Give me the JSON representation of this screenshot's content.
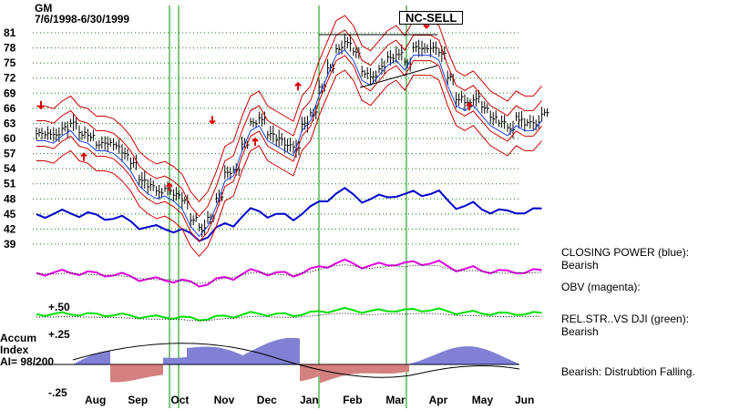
{
  "header": {
    "symbol": "GM",
    "date_range": "7/6/1998-6/30/1999"
  },
  "signal_label": "NC-SELL",
  "accum_label": {
    "line1": "Accum",
    "line2": "Index",
    "line3": "AI= 98/200"
  },
  "indicator_labels": {
    "plus50": "+.50",
    "plus25": "+.25",
    "minus25": "-.25"
  },
  "sidebar": [
    {
      "title": "CLOSING POWER (blue):",
      "value": "Bearish"
    },
    {
      "title": "OBV (magenta):",
      "value": ""
    },
    {
      "title": "REL.STR..VS DJI (green):",
      "value": "Bearish"
    },
    {
      "title": "Bearish: Distrubtion Falling.",
      "value": ""
    }
  ],
  "colors": {
    "price": "#000000",
    "closing_power": "#0000cc",
    "obv": "#e000e0",
    "rel_strength": "#00e000",
    "band": "#cc0000",
    "ma": "#1a3ee0",
    "grid": "#008000",
    "vline": "#009000",
    "arrow": "#dd0000",
    "accum_pos": "#0000aa",
    "accum_neg": "#aa0000"
  },
  "chart_data": {
    "type": "line",
    "title": "GM",
    "subtitle": "7/6/1998-6/30/1999",
    "x_months": [
      "Aug",
      "Sep",
      "Oct",
      "Nov",
      "Dec",
      "Jan",
      "Feb",
      "Mar",
      "Apr",
      "May",
      "Jun"
    ],
    "y_ticks": [
      39,
      42,
      45,
      48,
      51,
      54,
      57,
      60,
      63,
      66,
      69,
      72,
      75,
      78,
      81
    ],
    "ylim": [
      39,
      81
    ],
    "price_series": {
      "x_month": [
        0,
        0.2,
        0.4,
        0.6,
        0.8,
        1.0,
        1.2,
        1.4,
        1.6,
        1.8,
        2.0,
        2.2,
        2.4,
        2.6,
        2.8,
        3.0,
        3.2,
        3.4,
        3.6,
        3.8,
        4.0,
        4.2,
        4.4,
        4.6,
        4.8,
        5.0,
        5.2,
        5.4,
        5.6,
        5.8,
        6.0,
        6.2,
        6.4,
        6.6,
        6.8,
        7.0,
        7.2,
        7.4,
        7.6,
        7.8,
        8.0,
        8.2,
        8.4,
        8.6,
        8.8,
        9.0,
        9.2,
        9.4,
        9.6,
        9.8,
        10.0,
        10.2,
        10.4,
        10.6,
        10.8,
        11.0,
        11.2,
        11.4,
        11.6,
        11.8
      ],
      "close": [
        61,
        61,
        60.5,
        62,
        63,
        61,
        60.5,
        59,
        59,
        58.5,
        57,
        55,
        52,
        50.5,
        49.5,
        50,
        49,
        47.5,
        44,
        42,
        44,
        48,
        53,
        54,
        59,
        63,
        64,
        61,
        60,
        59,
        58,
        63,
        65,
        70,
        74,
        78,
        79,
        77,
        73,
        72,
        74,
        76,
        77,
        75,
        78,
        78,
        78,
        77,
        72,
        68,
        67,
        68,
        66,
        64,
        63,
        62,
        64,
        63,
        63,
        65
      ]
    },
    "vertical_signal_dates": [
      "Sep 25",
      "Sep 30",
      "Jan 15",
      "Mar 25"
    ],
    "arrows": [
      {
        "dir": "down",
        "month": "Jul",
        "price": 66
      },
      {
        "dir": "up",
        "month": "Aug",
        "price": 57
      },
      {
        "dir": "down",
        "month": "Nov",
        "price": 63
      },
      {
        "dir": "up",
        "month": "Oct",
        "price": 51
      },
      {
        "dir": "up",
        "month": "Dec",
        "price": 60
      },
      {
        "dir": "up",
        "month": "Jan",
        "price": 71
      },
      {
        "dir": "down",
        "month": "Apr",
        "price": 82
      },
      {
        "dir": "up",
        "month": "May",
        "price": 67
      }
    ]
  }
}
